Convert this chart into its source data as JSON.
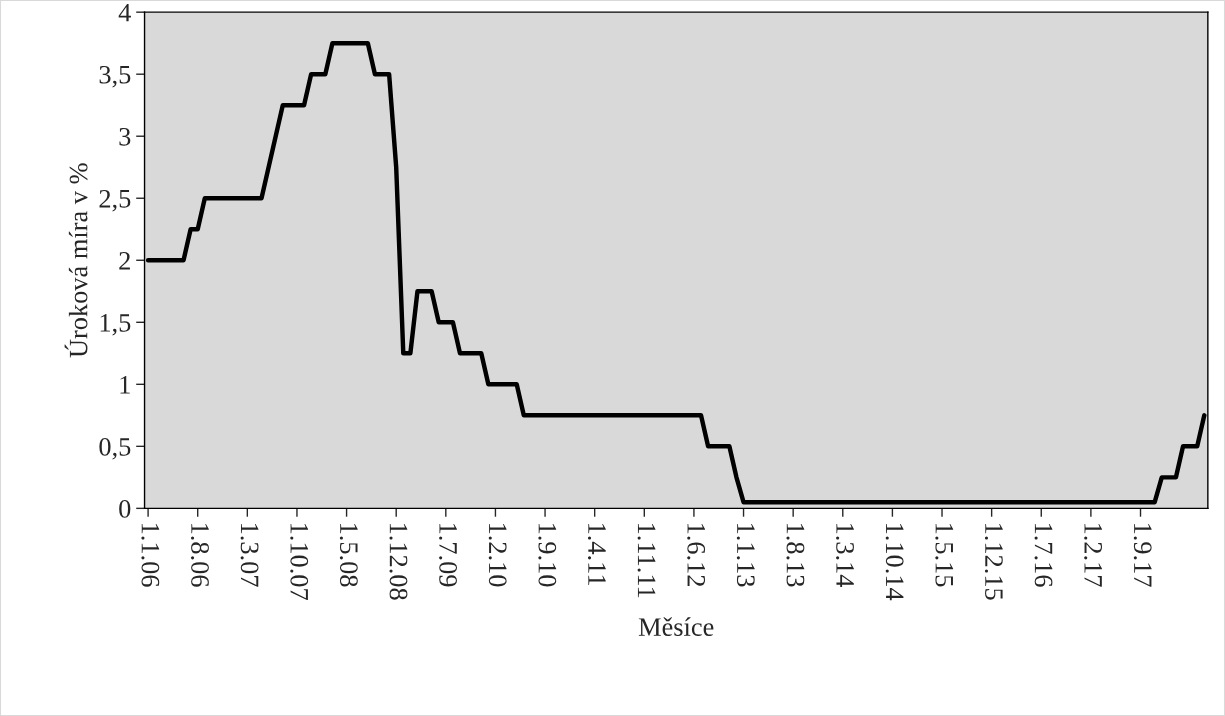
{
  "chart_data": {
    "type": "line",
    "xlabel": "Měsíce",
    "ylabel": "Úroková míra v %",
    "categories": [
      "1.1.06",
      null,
      null,
      null,
      null,
      null,
      null,
      "1.8.06",
      null,
      null,
      null,
      null,
      null,
      null,
      "1.3.07",
      null,
      null,
      null,
      null,
      null,
      null,
      "1.10.07",
      null,
      null,
      null,
      null,
      null,
      null,
      "1.5.08",
      null,
      null,
      null,
      null,
      null,
      null,
      "1.12.08",
      null,
      null,
      null,
      null,
      null,
      null,
      "1.7.09",
      null,
      null,
      null,
      null,
      null,
      null,
      "1.2.10",
      null,
      null,
      null,
      null,
      null,
      null,
      "1.9.10",
      null,
      null,
      null,
      null,
      null,
      null,
      "1.4.11",
      null,
      null,
      null,
      null,
      null,
      null,
      "1.11.11",
      null,
      null,
      null,
      null,
      null,
      null,
      "1.6.12",
      null,
      null,
      null,
      null,
      null,
      null,
      "1.1.13",
      null,
      null,
      null,
      null,
      null,
      null,
      "1.8.13",
      null,
      null,
      null,
      null,
      null,
      null,
      "1.3.14",
      null,
      null,
      null,
      null,
      null,
      null,
      "1.10.14",
      null,
      null,
      null,
      null,
      null,
      null,
      "1.5.15",
      null,
      null,
      null,
      null,
      null,
      null,
      "1.12.15",
      null,
      null,
      null,
      null,
      null,
      null,
      "1.7.16",
      null,
      null,
      null,
      null,
      null,
      null,
      "1.2.17",
      null,
      null,
      null,
      null,
      null,
      null,
      "1.9.17",
      null,
      null,
      null,
      null,
      null,
      null,
      null,
      null,
      null
    ],
    "series": [
      {
        "color": "#000000",
        "values": [
          2,
          2,
          2,
          2,
          2,
          2,
          2.25,
          2.25,
          2.5,
          2.5,
          2.5,
          2.5,
          2.5,
          2.5,
          2.5,
          2.5,
          2.5,
          2.75,
          3,
          3.25,
          3.25,
          3.25,
          3.25,
          3.5,
          3.5,
          3.5,
          3.75,
          3.75,
          3.75,
          3.75,
          3.75,
          3.75,
          3.5,
          3.5,
          3.5,
          2.75,
          1.25,
          1.25,
          1.75,
          1.75,
          1.75,
          1.5,
          1.5,
          1.5,
          1.25,
          1.25,
          1.25,
          1.25,
          1,
          1,
          1,
          1,
          1,
          0.75,
          0.75,
          0.75,
          0.75,
          0.75,
          0.75,
          0.75,
          0.75,
          0.75,
          0.75,
          0.75,
          0.75,
          0.75,
          0.75,
          0.75,
          0.75,
          0.75,
          0.75,
          0.75,
          0.75,
          0.75,
          0.75,
          0.75,
          0.75,
          0.75,
          0.75,
          0.5,
          0.5,
          0.5,
          0.5,
          0.25,
          0.05,
          0.05,
          0.05,
          0.05,
          0.05,
          0.05,
          0.05,
          0.05,
          0.05,
          0.05,
          0.05,
          0.05,
          0.05,
          0.05,
          0.05,
          0.05,
          0.05,
          0.05,
          0.05,
          0.05,
          0.05,
          0.05,
          0.05,
          0.05,
          0.05,
          0.05,
          0.05,
          0.05,
          0.05,
          0.05,
          0.05,
          0.05,
          0.05,
          0.05,
          0.05,
          0.05,
          0.05,
          0.05,
          0.05,
          0.05,
          0.05,
          0.05,
          0.05,
          0.05,
          0.05,
          0.05,
          0.05,
          0.05,
          0.05,
          0.05,
          0.05,
          0.05,
          0.05,
          0.05,
          0.05,
          0.05,
          0.05,
          0.05,
          0.05,
          0.25,
          0.25,
          0.25,
          0.5,
          0.5,
          0.5,
          0.75
        ]
      }
    ],
    "ylim": [
      0,
      4
    ],
    "yticks": [
      0,
      {
        "value": 0.5,
        "label": "0,5"
      },
      1,
      {
        "value": 1.5,
        "label": "1,5"
      },
      2,
      {
        "value": 2.5,
        "label": "2,5"
      },
      3,
      {
        "value": 3.5,
        "label": "3,5"
      },
      4
    ],
    "grid": false,
    "legend": false,
    "marker": "none",
    "line_style": "solid"
  }
}
